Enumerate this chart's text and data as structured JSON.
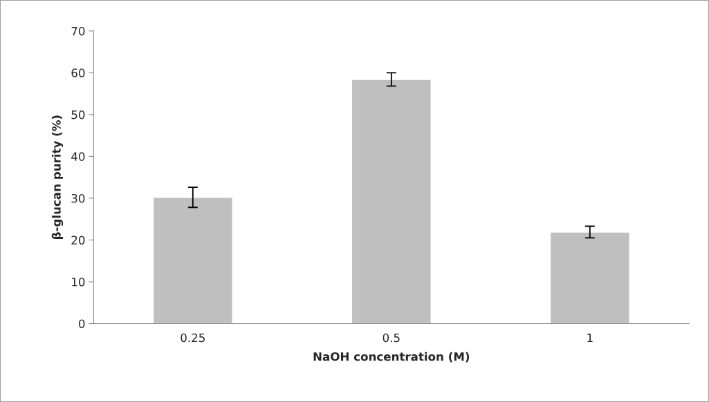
{
  "chart_data": {
    "type": "bar",
    "xlabel": "NaOH concentration (M)",
    "ylabel": "β-glucan purity (%)",
    "categories": [
      "0.25",
      "0.5",
      "1"
    ],
    "values": [
      30.2,
      58.4,
      21.9
    ],
    "errors": [
      2.4,
      1.6,
      1.4
    ],
    "color": "#bfbfbf",
    "ylim": [
      0,
      70
    ],
    "yticks": [
      0,
      10,
      20,
      30,
      40,
      50,
      60,
      70
    ],
    "grid": false,
    "legend": false
  }
}
